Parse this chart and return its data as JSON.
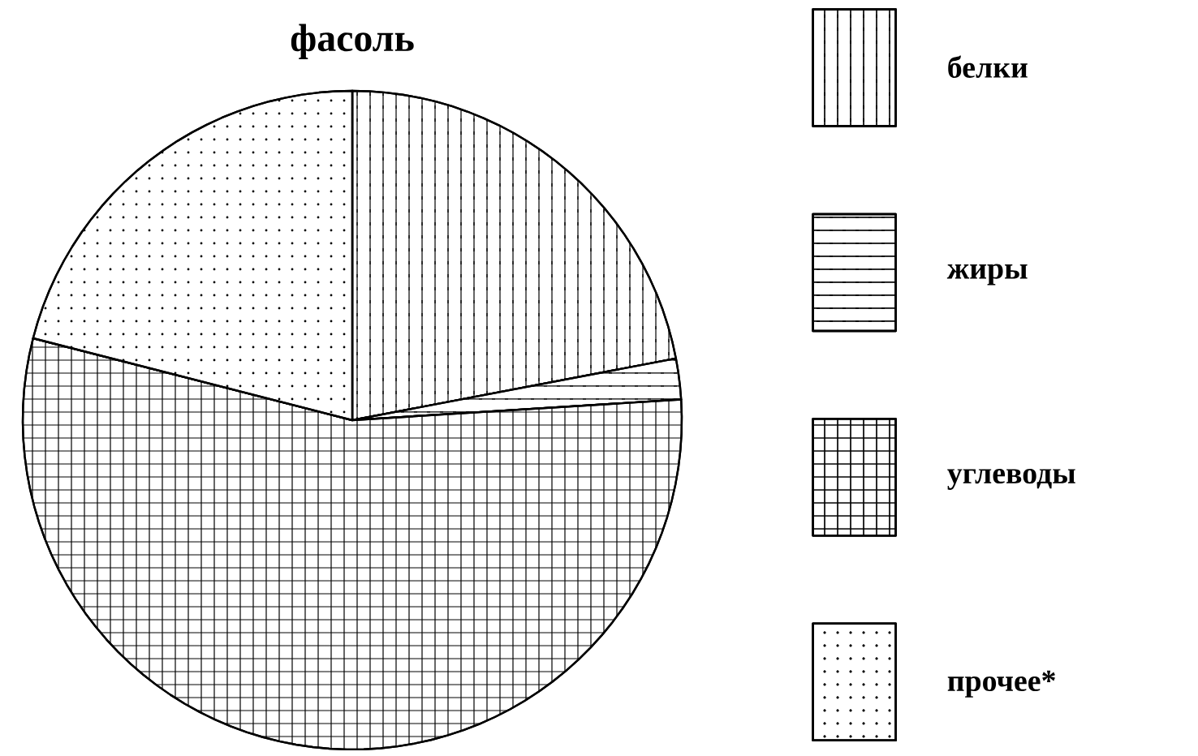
{
  "chart_data": {
    "type": "pie",
    "title": "фасоль",
    "categories": [
      "белки",
      "жиры",
      "углеводы",
      "прочее*"
    ],
    "values": [
      22,
      2,
      55,
      21
    ],
    "colors": [
      "#000000",
      "#000000",
      "#000000",
      "#000000"
    ],
    "legend": "right"
  }
}
